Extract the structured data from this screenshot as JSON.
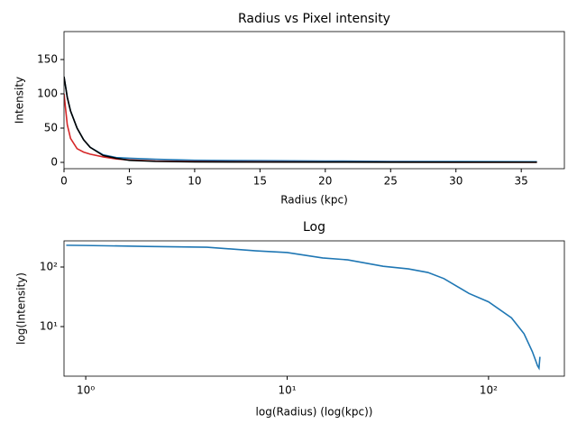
{
  "chart_data": [
    {
      "type": "line",
      "title": "Radius vs Pixel intensity",
      "x_label": "Radius (kpc)",
      "y_label": "Intensity",
      "x": [
        0,
        0.25,
        0.5,
        1,
        1.5,
        2,
        3,
        4,
        5,
        7,
        10,
        15,
        20,
        25,
        30,
        36.2
      ],
      "series": [
        {
          "color": "#1f77b4",
          "values": [
            125,
            95,
            75,
            50,
            33,
            22,
            11,
            7,
            6,
            4.5,
            3,
            2.5,
            2,
            1.5,
            1.2,
            1
          ]
        },
        {
          "color": "#d62728",
          "values": [
            100,
            55,
            35,
            20,
            15,
            12,
            8,
            5,
            3.5,
            2,
            1.2,
            0.8,
            0.5,
            0.4,
            0.3,
            0.2
          ]
        },
        {
          "color": "#000000",
          "values": [
            125,
            95,
            75,
            50,
            33,
            22,
            10,
            6,
            3,
            1.5,
            0.8,
            0.5,
            0.4,
            0.3,
            0.3,
            0.2
          ]
        }
      ],
      "xlim": [
        0,
        38.3
      ],
      "ylim": [
        -9.2,
        190.8
      ],
      "xticks": [
        0,
        5,
        10,
        15,
        20,
        25,
        30,
        35
      ],
      "yticks": [
        0,
        50,
        100,
        150
      ]
    },
    {
      "type": "line",
      "title": "Log",
      "x_label": "log(Radius) (log(kpc))",
      "y_label": "log(Intensity)",
      "x_log": true,
      "y_log": true,
      "x": [
        0.8,
        1,
        2,
        4,
        7,
        10,
        15,
        20,
        30,
        40,
        50,
        60,
        80,
        100,
        130,
        150,
        165,
        172,
        175,
        178,
        180
      ],
      "series": [
        {
          "color": "#1f77b4",
          "values": [
            232,
            230,
            222,
            215,
            187,
            175,
            142,
            132,
            103,
            93,
            81,
            64,
            36,
            26,
            14,
            7.6,
            3.8,
            2.6,
            2.2,
            2.0,
            3.1
          ]
        }
      ],
      "xlim": [
        0.78,
        238
      ],
      "ylim": [
        1.47,
        275
      ],
      "xticks": [
        {
          "value": 1,
          "label": "10⁰"
        },
        {
          "value": 10,
          "label": "10¹"
        },
        {
          "value": 100,
          "label": "10²"
        }
      ],
      "yticks": [
        {
          "value": 10,
          "label": "10¹"
        },
        {
          "value": 100,
          "label": "10²"
        }
      ]
    }
  ]
}
